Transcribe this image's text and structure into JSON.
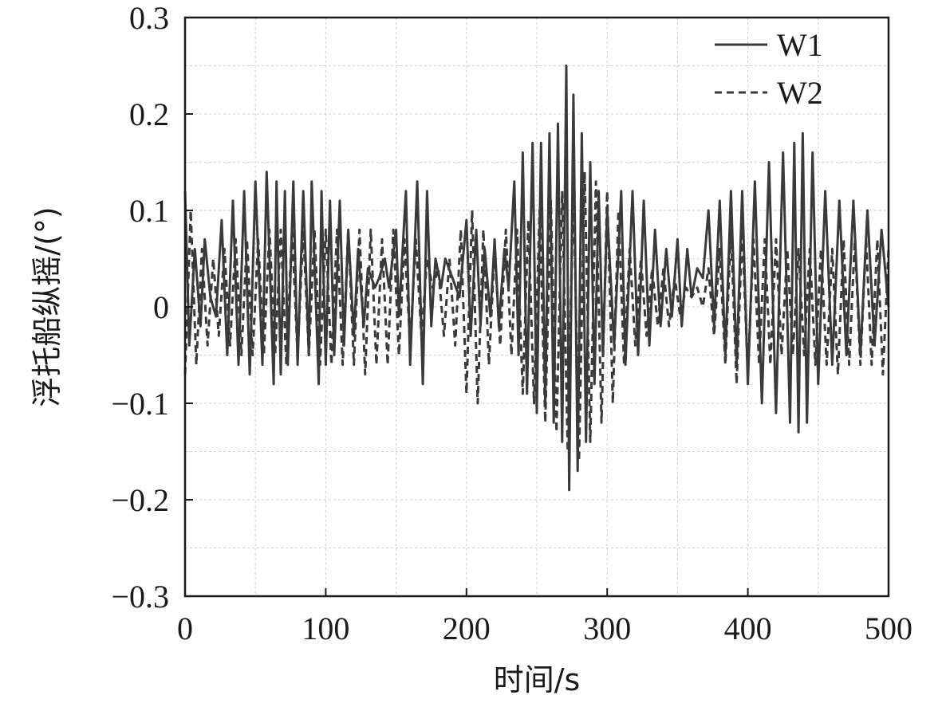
{
  "chart_data": {
    "type": "line",
    "xlabel": "时间/s",
    "ylabel": "浮托船纵摇/(°)",
    "xlim": [
      0,
      500
    ],
    "ylim": [
      -0.3,
      0.3
    ],
    "x_ticks": [
      0,
      100,
      200,
      300,
      400,
      500
    ],
    "x_tick_labels": [
      "0",
      "100",
      "200",
      "300",
      "400",
      "500"
    ],
    "y_ticks": [
      -0.3,
      -0.2,
      -0.1,
      0,
      0.1,
      0.2,
      0.3
    ],
    "y_tick_labels": [
      "−0.3",
      "−0.2",
      "−0.1",
      "0",
      "0.1",
      "0.2",
      "0.3"
    ],
    "grid": true,
    "legend_position": "top-right",
    "colors": {
      "W1": "#3a3a3a",
      "W2": "#3a3a3a",
      "grid": "#cfcfcf"
    },
    "series": [
      {
        "name": "W1",
        "style": "solid",
        "x": [
          0,
          3,
          7,
          11,
          14,
          18,
          22,
          26,
          30,
          34,
          38,
          42,
          46,
          50,
          55,
          58,
          63,
          65,
          68,
          71,
          73,
          77,
          80,
          84,
          88,
          90,
          95,
          97,
          100,
          103,
          106,
          110,
          113,
          116,
          120,
          123,
          127,
          130,
          135,
          138,
          142,
          145,
          150,
          152,
          157,
          160,
          165,
          169,
          172,
          175,
          178,
          182,
          185,
          190,
          195,
          200,
          203,
          207,
          210,
          213,
          217,
          220,
          223,
          227,
          230,
          234,
          237,
          240,
          243,
          247,
          250,
          253,
          256,
          259,
          262,
          265,
          268,
          271,
          273,
          276,
          279,
          282,
          285,
          288,
          291,
          294,
          297,
          300,
          305,
          310,
          313,
          318,
          322,
          326,
          330,
          334,
          338,
          342,
          346,
          350,
          353,
          357,
          360,
          364,
          368,
          372,
          376,
          380,
          384,
          388,
          392,
          396,
          400,
          405,
          410,
          415,
          420,
          425,
          430,
          433,
          436,
          439,
          442,
          446,
          450,
          455,
          460,
          465,
          470,
          475,
          480,
          485,
          490,
          495,
          500
        ],
        "y": [
          0.12,
          -0.04,
          0.06,
          -0.02,
          0.07,
          0.01,
          -0.01,
          0.09,
          -0.05,
          0.11,
          -0.06,
          0.12,
          -0.07,
          0.13,
          -0.06,
          0.14,
          -0.08,
          0.13,
          -0.07,
          0.12,
          -0.06,
          0.13,
          -0.06,
          0.12,
          -0.05,
          0.13,
          -0.08,
          0.12,
          -0.06,
          0.11,
          -0.05,
          0.11,
          -0.04,
          0.08,
          -0.03,
          0.06,
          -0.02,
          0.04,
          0.02,
          0.03,
          0.05,
          0.02,
          0.08,
          -0.01,
          0.12,
          -0.06,
          0.13,
          -0.08,
          0.12,
          -0.02,
          0.05,
          0.02,
          0.05,
          0.03,
          0.01,
          0.09,
          -0.03,
          0.08,
          -0.02,
          0.06,
          -0.01,
          0.07,
          -0.02,
          0.06,
          0.02,
          0.13,
          -0.05,
          0.16,
          -0.09,
          0.17,
          -0.11,
          0.17,
          -0.1,
          0.18,
          -0.12,
          0.19,
          -0.14,
          0.25,
          -0.19,
          0.22,
          -0.17,
          0.18,
          -0.14,
          0.15,
          -0.08,
          0.12,
          -0.05,
          0.1,
          -0.04,
          0.12,
          -0.06,
          0.12,
          -0.05,
          0.11,
          -0.04,
          0.08,
          -0.02,
          0.06,
          -0.01,
          0.07,
          -0.02,
          0.06,
          0.01,
          0.04,
          0.03,
          0.1,
          -0.02,
          0.11,
          -0.05,
          0.12,
          -0.06,
          0.12,
          -0.08,
          0.13,
          -0.1,
          0.15,
          -0.11,
          0.16,
          -0.12,
          0.17,
          -0.13,
          0.18,
          -0.12,
          0.16,
          -0.08,
          0.12,
          -0.06,
          0.11,
          -0.05,
          0.11,
          -0.05,
          0.1,
          -0.04,
          0.08,
          0.0
        ]
      },
      {
        "name": "W2",
        "style": "dashed",
        "x": [
          0,
          4,
          8,
          12,
          16,
          20,
          24,
          28,
          32,
          36,
          40,
          44,
          48,
          52,
          56,
          60,
          64,
          68,
          72,
          76,
          80,
          84,
          88,
          92,
          96,
          100,
          104,
          108,
          112,
          116,
          120,
          124,
          128,
          132,
          136,
          140,
          144,
          148,
          152,
          156,
          160,
          164,
          168,
          172,
          176,
          180,
          184,
          188,
          192,
          196,
          200,
          204,
          208,
          212,
          216,
          220,
          224,
          228,
          232,
          236,
          240,
          244,
          248,
          252,
          256,
          260,
          264,
          268,
          272,
          276,
          280,
          284,
          288,
          292,
          296,
          300,
          304,
          308,
          312,
          316,
          320,
          324,
          328,
          332,
          336,
          340,
          344,
          348,
          352,
          356,
          360,
          364,
          368,
          372,
          376,
          380,
          384,
          388,
          392,
          396,
          400,
          404,
          408,
          412,
          416,
          420,
          424,
          428,
          432,
          436,
          440,
          444,
          448,
          452,
          456,
          460,
          464,
          468,
          472,
          476,
          480,
          484,
          488,
          492,
          496,
          500
        ],
        "y": [
          -0.07,
          0.1,
          -0.06,
          0.06,
          -0.04,
          0.05,
          -0.03,
          0.06,
          -0.04,
          0.07,
          -0.05,
          0.07,
          -0.05,
          0.07,
          -0.05,
          0.08,
          -0.05,
          0.08,
          -0.06,
          0.08,
          -0.05,
          0.08,
          -0.05,
          0.08,
          -0.06,
          0.08,
          -0.06,
          0.08,
          -0.06,
          0.08,
          -0.06,
          0.08,
          -0.07,
          0.08,
          -0.06,
          0.07,
          -0.06,
          0.08,
          -0.05,
          0.07,
          -0.04,
          0.07,
          -0.03,
          0.05,
          0.02,
          0.04,
          -0.03,
          0.05,
          -0.04,
          0.08,
          -0.09,
          0.1,
          -0.1,
          0.08,
          -0.06,
          0.06,
          -0.04,
          0.08,
          -0.05,
          0.08,
          -0.09,
          0.09,
          -0.1,
          0.1,
          -0.12,
          0.11,
          -0.13,
          0.12,
          -0.15,
          0.13,
          -0.16,
          0.14,
          -0.14,
          0.13,
          -0.12,
          0.12,
          -0.1,
          0.1,
          -0.06,
          0.06,
          -0.04,
          0.05,
          -0.03,
          0.04,
          -0.02,
          0.04,
          -0.02,
          0.03,
          -0.01,
          0.02,
          0.01,
          0.02,
          0.0,
          0.04,
          -0.03,
          0.06,
          -0.06,
          0.08,
          -0.08,
          0.08,
          -0.07,
          0.07,
          -0.06,
          0.07,
          -0.06,
          0.07,
          -0.05,
          0.06,
          -0.05,
          0.06,
          -0.05,
          0.06,
          -0.06,
          0.06,
          -0.06,
          0.06,
          -0.07,
          0.07,
          -0.06,
          0.07,
          -0.06,
          0.07,
          -0.06,
          0.07,
          -0.07,
          0.06
        ]
      }
    ]
  }
}
